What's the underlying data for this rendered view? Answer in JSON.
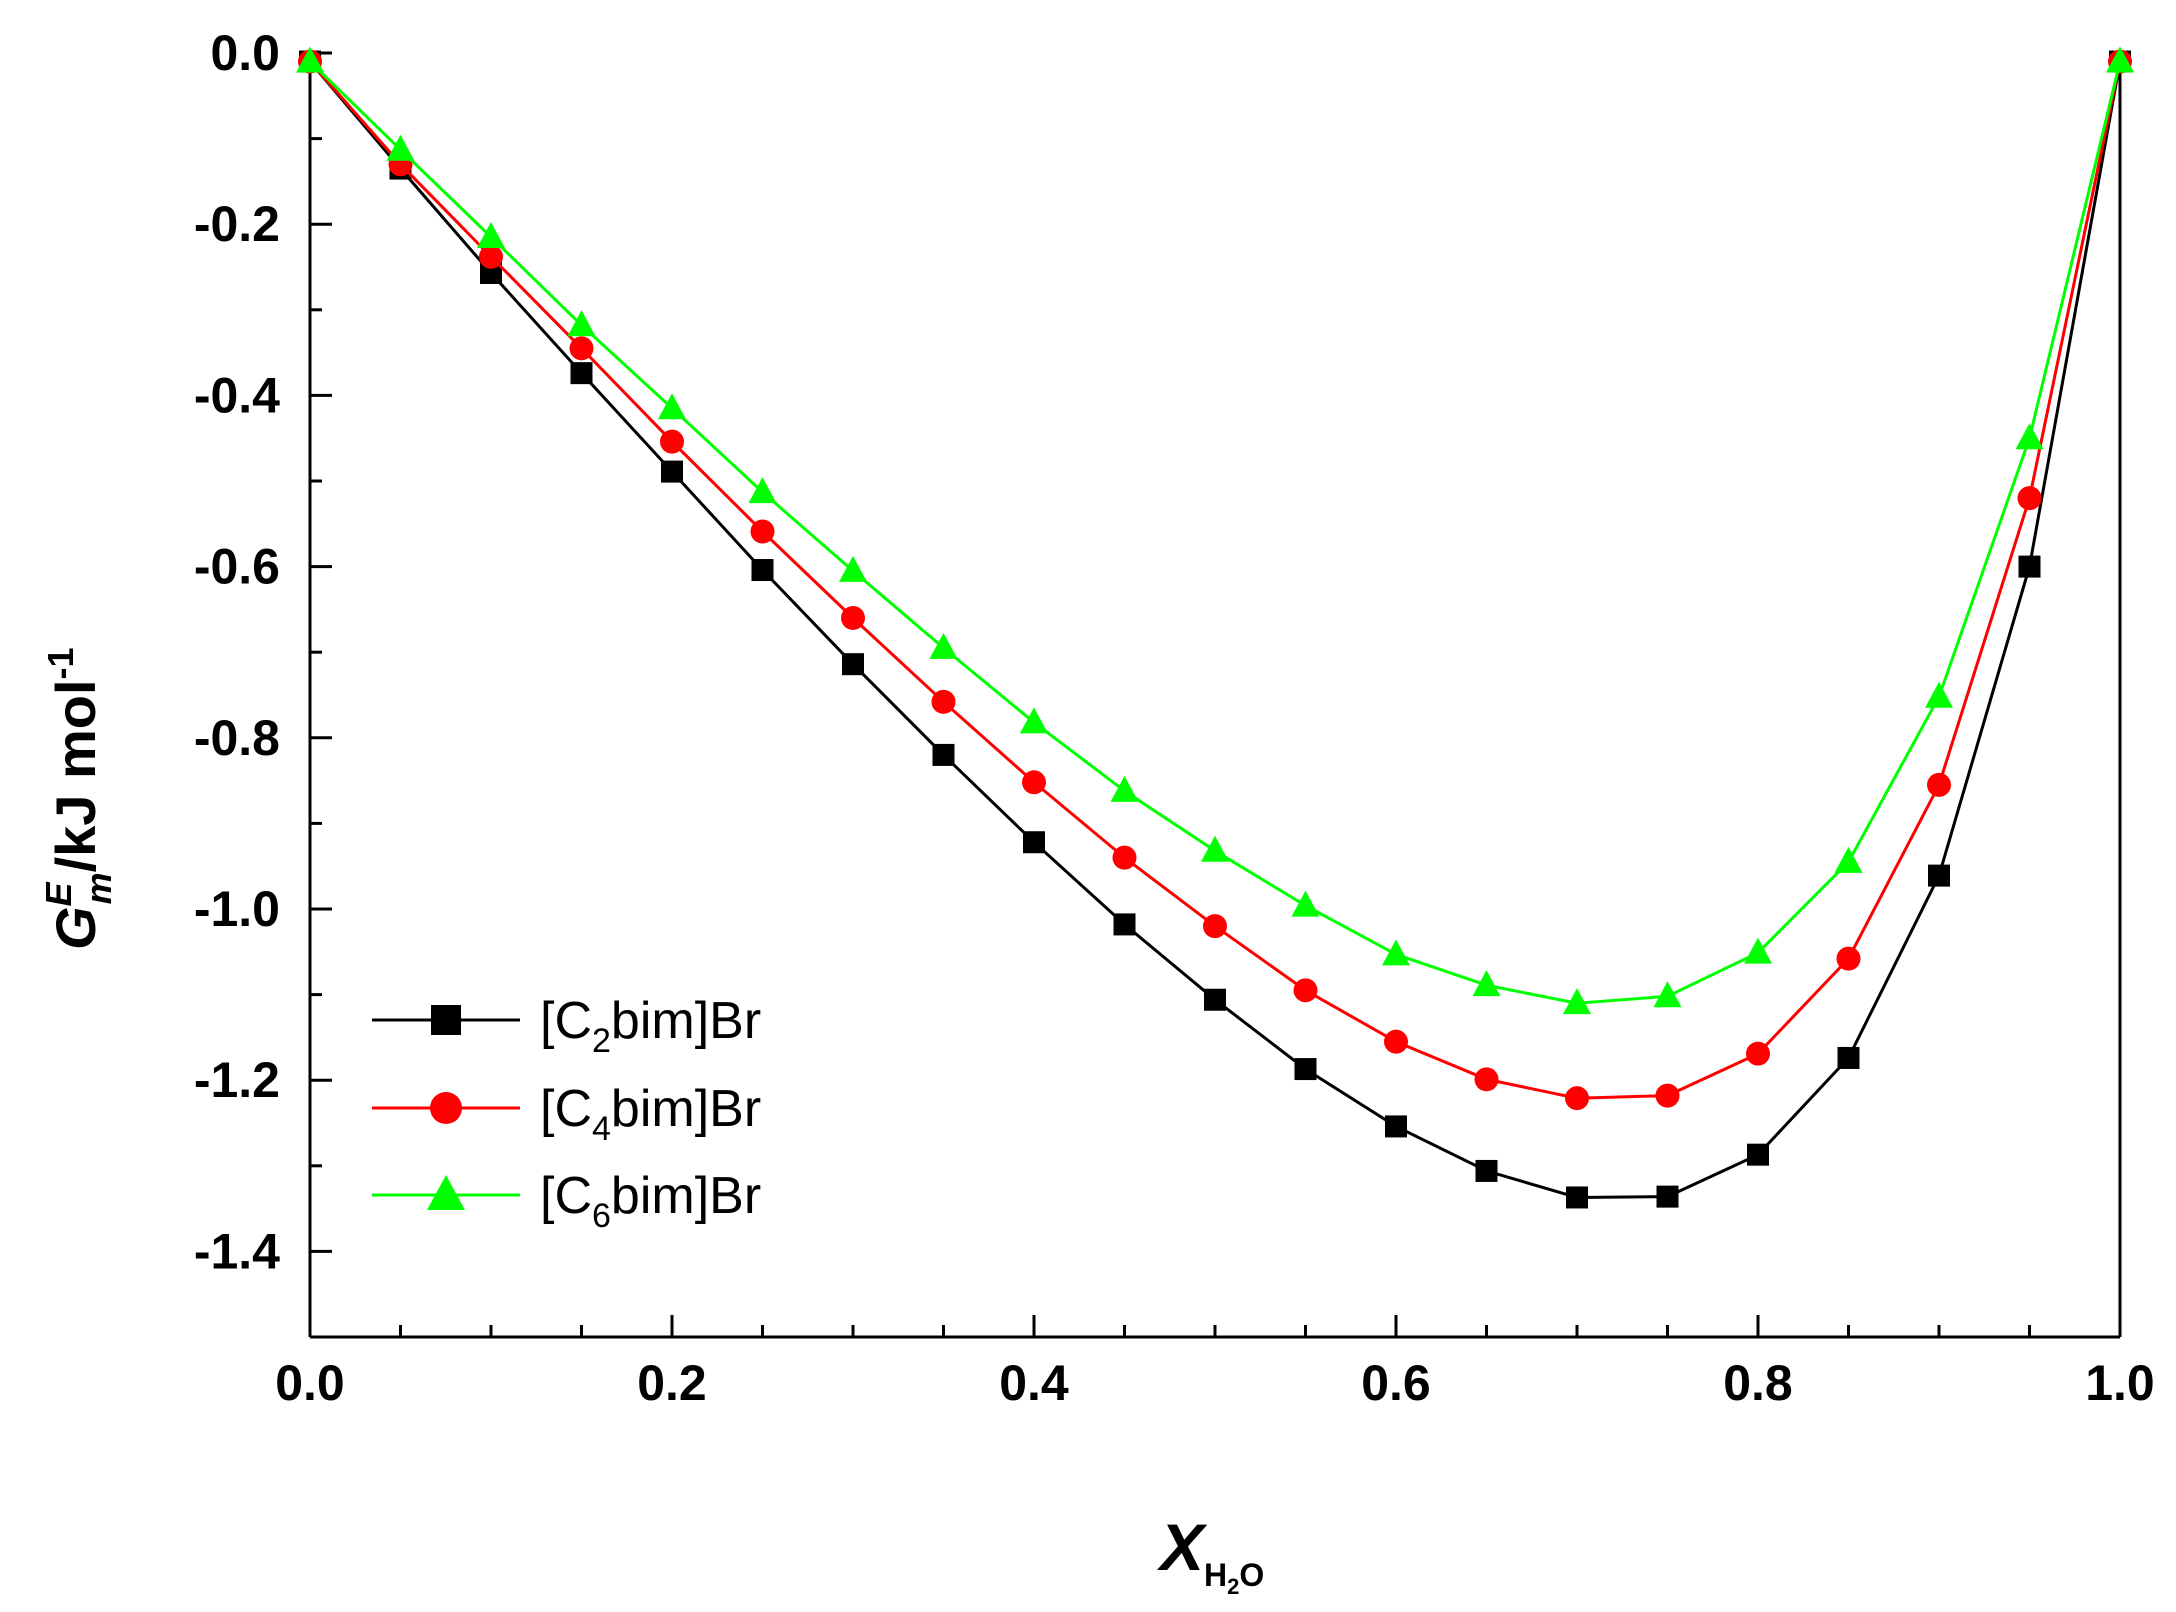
{
  "chart_data": {
    "type": "line",
    "title": "",
    "xlabel": {
      "main": "X",
      "sub_h": "H",
      "sub_2": "2",
      "sub_o": "O"
    },
    "ylabel": {
      "g": "G",
      "sup_e": "E",
      "sub_m": "m",
      "unit": "/kJ mol",
      "sup_neg1": "-1"
    },
    "xlim": [
      0.0,
      1.0
    ],
    "ylim": [
      -1.5,
      0.0
    ],
    "xticks": [
      0.0,
      0.2,
      0.4,
      0.6,
      0.8,
      1.0
    ],
    "xtick_labels": [
      "0.0",
      "0.2",
      "0.4",
      "0.6",
      "0.8",
      "1.0"
    ],
    "yticks": [
      0.0,
      -0.2,
      -0.4,
      -0.6,
      -0.8,
      -1.0,
      -1.2,
      -1.4
    ],
    "ytick_labels": [
      "0.0",
      "-0.2",
      "-0.4",
      "-0.6",
      "-0.8",
      "-1.0",
      "-1.2",
      "-1.4"
    ],
    "x": [
      0.0,
      0.05,
      0.1,
      0.15,
      0.2,
      0.25,
      0.3,
      0.35,
      0.4,
      0.45,
      0.5,
      0.55,
      0.6,
      0.65,
      0.7,
      0.75,
      0.8,
      0.85,
      0.9,
      0.95,
      1.0
    ],
    "legend_position": "lower-left",
    "series": [
      {
        "name": "[C2bim]Br",
        "label_pre": "[C",
        "label_sub": "2",
        "label_post": "bim]Br",
        "color": "#000000",
        "marker": "square",
        "values": [
          -0.01,
          -0.135,
          -0.257,
          -0.374,
          -0.489,
          -0.604,
          -0.714,
          -0.82,
          -0.922,
          -1.018,
          -1.106,
          -1.187,
          -1.254,
          -1.306,
          -1.337,
          -1.336,
          -1.287,
          -1.174,
          -0.961,
          -0.6,
          -0.01
        ]
      },
      {
        "name": "[C4bim]Br",
        "label_pre": "[C",
        "label_sub": "4",
        "label_post": "bim]Br",
        "color": "#ff0000",
        "marker": "circle",
        "values": [
          -0.01,
          -0.13,
          -0.238,
          -0.345,
          -0.454,
          -0.559,
          -0.66,
          -0.758,
          -0.852,
          -0.94,
          -1.02,
          -1.095,
          -1.155,
          -1.199,
          -1.221,
          -1.218,
          -1.169,
          -1.058,
          -0.855,
          -0.52,
          -0.01
        ]
      },
      {
        "name": "[C6bim]Br",
        "label_pre": "[C",
        "label_sub": "6",
        "label_post": "bim]Br",
        "color": "#00ff00",
        "marker": "triangle",
        "values": [
          -0.01,
          -0.113,
          -0.215,
          -0.318,
          -0.415,
          -0.513,
          -0.605,
          -0.695,
          -0.782,
          -0.862,
          -0.932,
          -0.996,
          -1.053,
          -1.089,
          -1.11,
          -1.102,
          -1.051,
          -0.945,
          -0.752,
          -0.45,
          -0.01
        ]
      }
    ]
  }
}
